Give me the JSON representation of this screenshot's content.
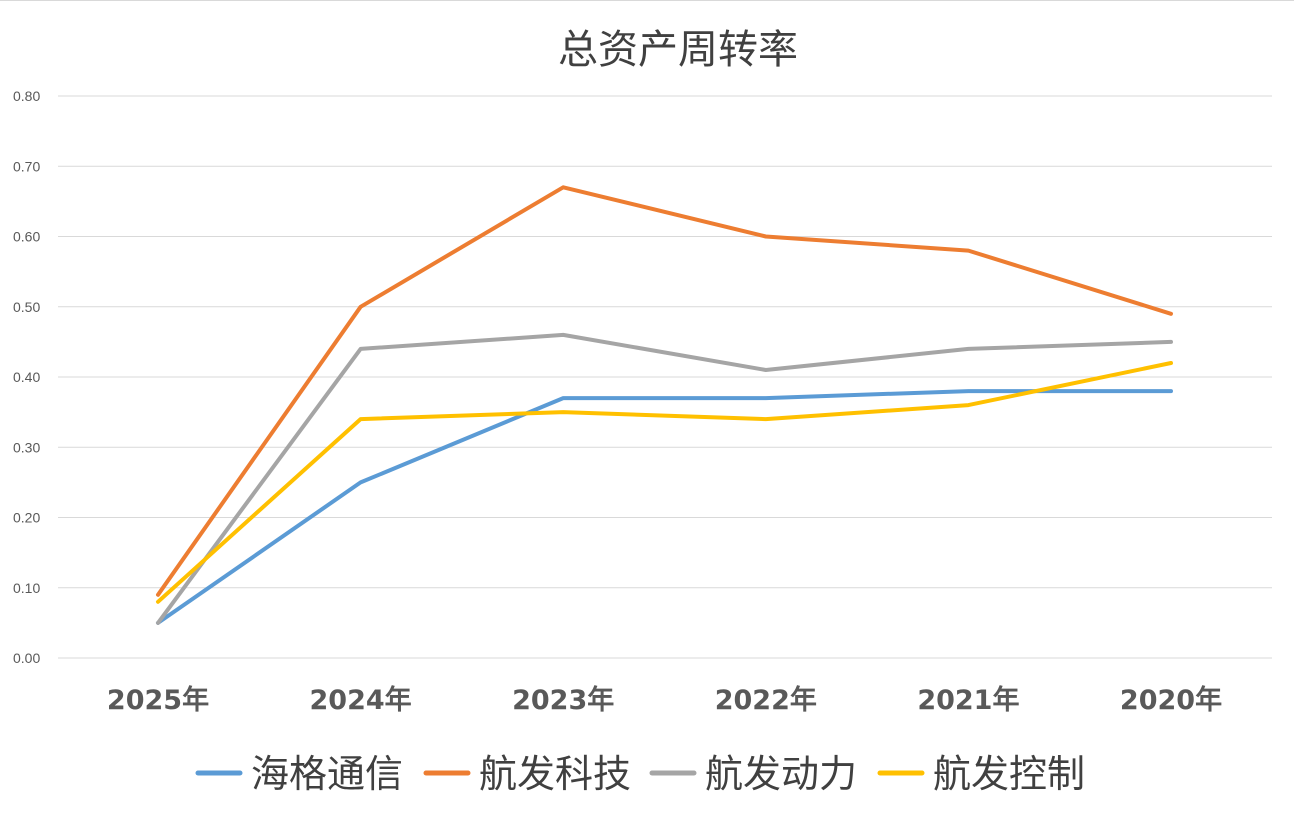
{
  "chart_data": {
    "type": "line",
    "title": "总资产周转率",
    "xlabel": "",
    "ylabel": "",
    "categories": [
      "2025年",
      "2024年",
      "2023年",
      "2022年",
      "2021年",
      "2020年"
    ],
    "ylim": [
      0,
      0.8
    ],
    "yticks": [
      "0.00",
      "0.10",
      "0.20",
      "0.30",
      "0.40",
      "0.50",
      "0.60",
      "0.70",
      "0.80"
    ],
    "grid": true,
    "legend_position": "bottom",
    "series": [
      {
        "name": "海格通信",
        "color": "#5B9BD5",
        "values": [
          0.05,
          0.25,
          0.37,
          0.37,
          0.38,
          0.38
        ]
      },
      {
        "name": "航发科技",
        "color": "#ED7D31",
        "values": [
          0.09,
          0.5,
          0.67,
          0.6,
          0.58,
          0.49
        ]
      },
      {
        "name": "航发动力",
        "color": "#A5A5A5",
        "values": [
          0.05,
          0.44,
          0.46,
          0.41,
          0.44,
          0.45
        ]
      },
      {
        "name": "航发控制",
        "color": "#FFC000",
        "values": [
          0.08,
          0.34,
          0.35,
          0.34,
          0.36,
          0.42
        ]
      }
    ]
  }
}
